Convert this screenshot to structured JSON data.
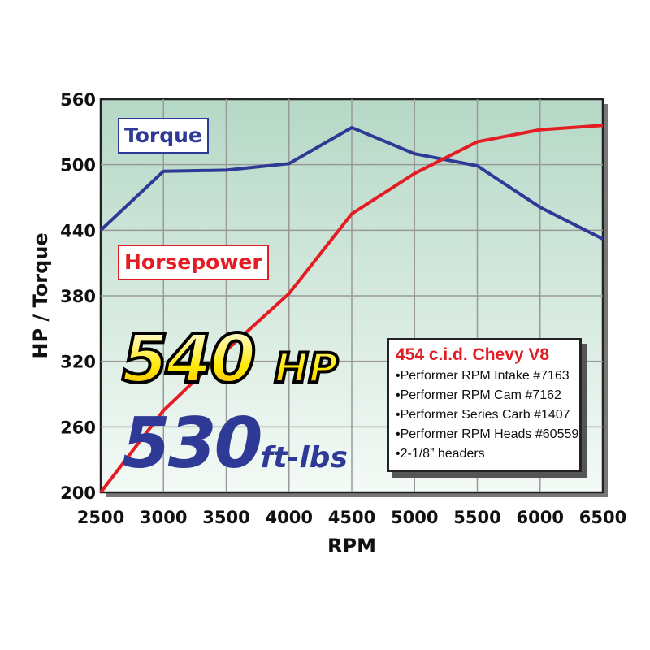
{
  "chart_data": {
    "type": "line",
    "xlabel": "RPM",
    "ylabel": "HP / Torque",
    "xlim": [
      2500,
      6500
    ],
    "ylim": [
      200,
      560
    ],
    "x_ticks": [
      2500,
      3000,
      3500,
      4000,
      4500,
      5000,
      5500,
      6000,
      6500
    ],
    "y_ticks": [
      200,
      260,
      320,
      380,
      440,
      500,
      560
    ],
    "grid": true,
    "x": [
      2500,
      3000,
      3500,
      4000,
      4500,
      5000,
      5500,
      6000,
      6500
    ],
    "series": [
      {
        "name": "Torque",
        "color": "#2e3a96",
        "values": [
          440,
          494,
          495,
          501,
          534,
          510,
          499,
          461,
          432
        ]
      },
      {
        "name": "Horsepower",
        "color": "#e41c24",
        "values": [
          200,
          275,
          330,
          382,
          455,
          492,
          521,
          532,
          536
        ]
      }
    ]
  },
  "headline": {
    "hp_value": "540",
    "hp_unit": "HP",
    "torque_value": "530",
    "torque_unit": "ft-lbs"
  },
  "spec_box": {
    "title": "454 c.i.d. Chevy V8",
    "items": [
      "Performer RPM Intake #7163",
      "Performer RPM Cam #7162",
      "Performer Series Carb #1407",
      "Performer RPM Heads #60559",
      "2-1/8” headers"
    ]
  }
}
